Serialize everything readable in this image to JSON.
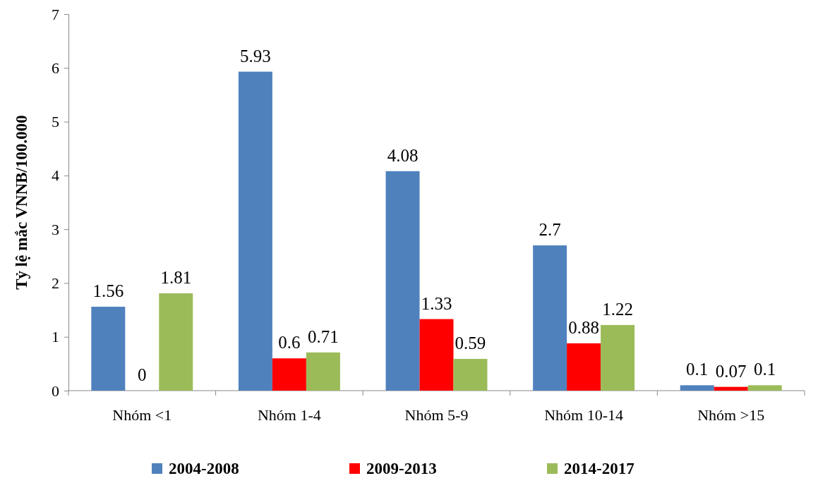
{
  "chart_data": {
    "type": "bar",
    "ylabel": "Tỷ lệ mắc VNNB/100.000",
    "categories": [
      "Nhóm <1",
      "Nhóm 1-4",
      "Nhóm 5-9",
      "Nhóm 10-14",
      "Nhóm >15"
    ],
    "series": [
      {
        "name": "2004-2008",
        "color": "#4f81bd",
        "values": [
          1.56,
          5.93,
          4.08,
          2.7,
          0.1
        ]
      },
      {
        "name": "2009-2013",
        "color": "#ff0000",
        "values": [
          0,
          0.6,
          1.33,
          0.88,
          0.07
        ]
      },
      {
        "name": "2014-2017",
        "color": "#9bbb59",
        "values": [
          1.81,
          0.71,
          0.59,
          1.22,
          0.1
        ]
      }
    ],
    "ylim": [
      0,
      7
    ],
    "yticks": [
      0,
      1,
      2,
      3,
      4,
      5,
      6,
      7
    ],
    "data_labels": true,
    "legend": "bottom",
    "grid": false
  }
}
